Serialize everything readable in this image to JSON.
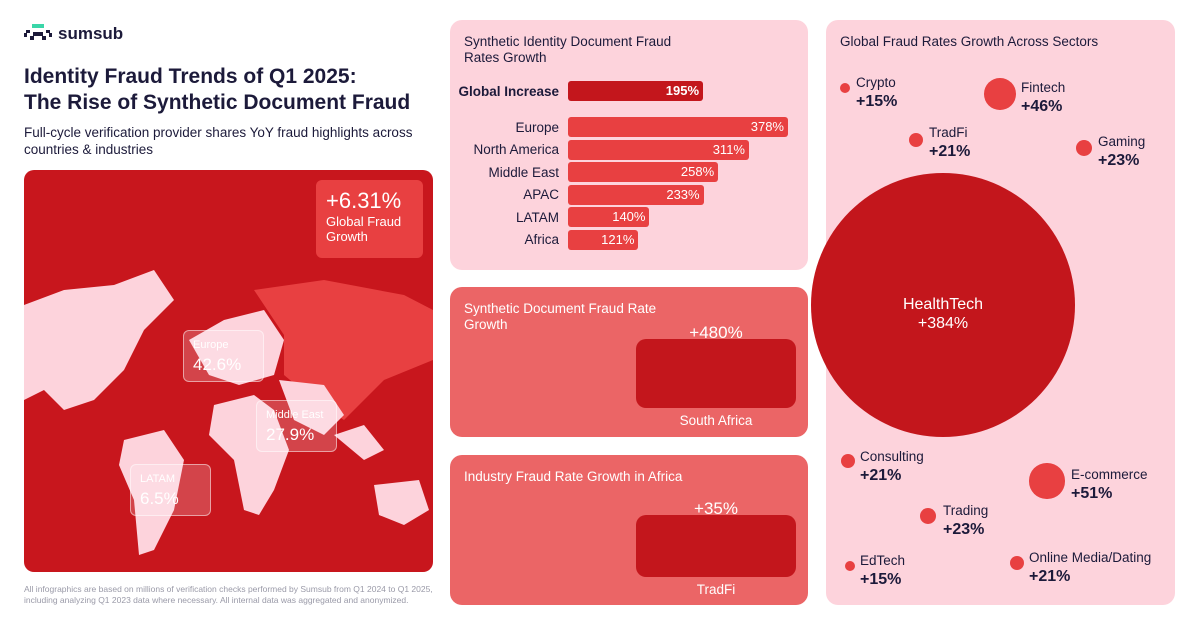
{
  "brand": {
    "name": "sumsub"
  },
  "header": {
    "title_line1": "Identity Fraud Trends of Q1 2025:",
    "title_line2": "The Rise of Synthetic Document Fraud",
    "subtitle": "Full-cycle verification provider shares YoY fraud highlights across countries & industries"
  },
  "map": {
    "global": {
      "value": "+6.31%",
      "label": "Global Fraud Growth"
    },
    "regions": [
      {
        "label": "Europe",
        "value": "42.6%"
      },
      {
        "label": "Middle East",
        "value": "27.9%"
      },
      {
        "label": "LATAM",
        "value": "6.5%"
      }
    ]
  },
  "footer": "All infographics are based on millions of verification checks performed by Sumsub from Q1 2024 to Q1 2025, including analyzing Q1 2023 data where necessary. All internal data was aggregated and anonymized.",
  "colors": {
    "accent": "#c3161c",
    "bar": "#e84041",
    "panel_pink": "#fdd3dc",
    "panel_red": "#eb6566",
    "map_bg": "#c8161d"
  },
  "chart_data": [
    {
      "type": "bar",
      "title": "Synthetic Identity Document Fraud Rates Growth",
      "global": {
        "label": "Global Increase",
        "value": 195,
        "display": "195%"
      },
      "categories": [
        "Europe",
        "North America",
        "Middle East",
        "APAC",
        "LATAM",
        "Africa"
      ],
      "values": [
        378,
        311,
        258,
        233,
        140,
        121
      ],
      "displays": [
        "378%",
        "311%",
        "258%",
        "233%",
        "140%",
        "121%"
      ]
    },
    {
      "type": "bar",
      "title": "Synthetic Document Fraud Rate Growth",
      "categories": [
        "South Africa"
      ],
      "values": [
        480
      ],
      "displays": [
        "+480%"
      ]
    },
    {
      "type": "bar",
      "title": "Industry Fraud Rate Growth in Africa",
      "categories": [
        "TradFi"
      ],
      "values": [
        35
      ],
      "displays": [
        "+35%"
      ]
    },
    {
      "type": "bubble",
      "title": "Global Fraud Rates Growth Across Sectors",
      "items": [
        {
          "name": "Crypto",
          "value": 15,
          "display": "+15%"
        },
        {
          "name": "Fintech",
          "value": 46,
          "display": "+46%"
        },
        {
          "name": "TradFi",
          "value": 21,
          "display": "+21%"
        },
        {
          "name": "Gaming",
          "value": 23,
          "display": "+23%"
        },
        {
          "name": "HealthTech",
          "value": 384,
          "display": "+384%"
        },
        {
          "name": "Consulting",
          "value": 21,
          "display": "+21%"
        },
        {
          "name": "E-commerce",
          "value": 51,
          "display": "+51%"
        },
        {
          "name": "Trading",
          "value": 23,
          "display": "+23%"
        },
        {
          "name": "EdTech",
          "value": 15,
          "display": "+15%"
        },
        {
          "name": "Online Media/Dating",
          "value": 21,
          "display": "+21%"
        }
      ]
    }
  ]
}
